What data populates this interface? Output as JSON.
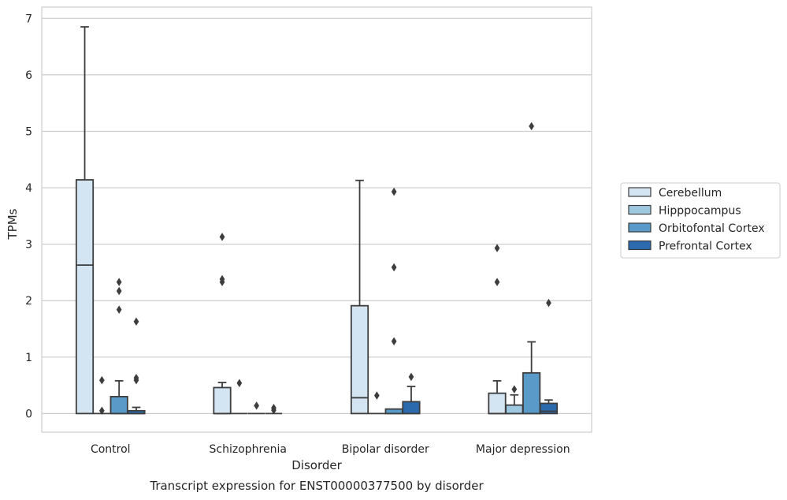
{
  "chart_data": {
    "type": "box",
    "caption": "Transcript expression for ENST00000377500 by disorder",
    "xlabel": "Disorder",
    "ylabel": "TPMs",
    "ylim": [
      -0.33,
      7.2
    ],
    "yticks": [
      0,
      1,
      2,
      3,
      4,
      5,
      6,
      7
    ],
    "grid": "horizontal",
    "legend_position": "right",
    "categories": [
      "Control",
      "Schizophrenia",
      "Bipolar disorder",
      "Major depression"
    ],
    "series": [
      {
        "name": "Cerebellum",
        "color": "#d3e4f3",
        "boxes": [
          {
            "q1": 0,
            "median": 2.63,
            "q3": 4.14,
            "whislo": 0,
            "whishi": 6.85,
            "fliers": []
          },
          {
            "q1": 0,
            "median": 0,
            "q3": 0.46,
            "whislo": 0,
            "whishi": 0.55,
            "fliers": [
              2.33,
              2.38,
              3.13
            ]
          },
          {
            "q1": 0,
            "median": 0.28,
            "q3": 1.91,
            "whislo": 0,
            "whishi": 4.13,
            "fliers": []
          },
          {
            "q1": 0,
            "median": 0,
            "q3": 0.36,
            "whislo": 0,
            "whishi": 0.58,
            "fliers": [
              2.33,
              2.93
            ]
          }
        ]
      },
      {
        "name": "Hipppocampus",
        "color": "#9ec8e0",
        "boxes": [
          {
            "q1": 0,
            "median": 0,
            "q3": 0,
            "whislo": 0,
            "whishi": 0,
            "fliers": [
              0.05,
              0.59
            ]
          },
          {
            "q1": 0,
            "median": 0,
            "q3": 0,
            "whislo": 0,
            "whishi": 0,
            "fliers": [
              0.54
            ]
          },
          {
            "q1": 0,
            "median": 0,
            "q3": 0,
            "whislo": 0,
            "whishi": 0,
            "fliers": [
              0.32
            ]
          },
          {
            "q1": 0,
            "median": 0,
            "q3": 0.15,
            "whislo": 0,
            "whishi": 0.33,
            "fliers": [
              0.43
            ]
          }
        ]
      },
      {
        "name": "Orbitofontal Cortex",
        "color": "#5a9ac8",
        "boxes": [
          {
            "q1": 0,
            "median": 0,
            "q3": 0.3,
            "whislo": 0,
            "whishi": 0.58,
            "fliers": [
              1.84,
              2.17,
              2.33
            ]
          },
          {
            "q1": 0,
            "median": 0,
            "q3": 0,
            "whislo": 0,
            "whishi": 0,
            "fliers": [
              0.14
            ]
          },
          {
            "q1": 0,
            "median": 0,
            "q3": 0.08,
            "whislo": 0,
            "whishi": 0.08,
            "fliers": [
              1.28,
              2.59,
              3.93
            ]
          },
          {
            "q1": 0,
            "median": 0,
            "q3": 0.72,
            "whislo": 0,
            "whishi": 1.27,
            "fliers": [
              5.09
            ]
          }
        ]
      },
      {
        "name": "Prefrontal Cortex",
        "color": "#2a6aad",
        "boxes": [
          {
            "q1": 0,
            "median": 0,
            "q3": 0.05,
            "whislo": 0,
            "whishi": 0.11,
            "fliers": [
              0.59,
              0.63,
              1.63
            ]
          },
          {
            "q1": 0,
            "median": 0,
            "q3": 0,
            "whislo": 0,
            "whishi": 0,
            "fliers": [
              0.06,
              0.1
            ]
          },
          {
            "q1": 0,
            "median": 0,
            "q3": 0.21,
            "whislo": 0,
            "whishi": 0.48,
            "fliers": [
              0.65
            ]
          },
          {
            "q1": 0,
            "median": 0.04,
            "q3": 0.18,
            "whislo": 0,
            "whishi": 0.24,
            "fliers": [
              1.96
            ]
          }
        ]
      }
    ]
  }
}
